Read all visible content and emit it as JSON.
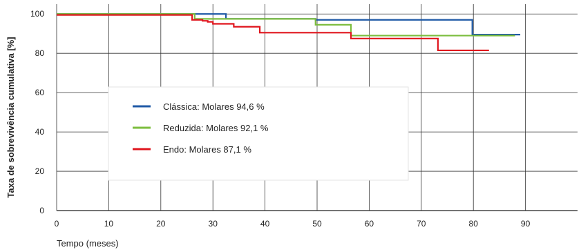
{
  "chart_data": {
    "type": "line",
    "xlabel": "Tempo (meses)",
    "ylabel": "Taxa de sobrevivência cumulativa [%]",
    "xlim": [
      0,
      100
    ],
    "ylim": [
      0,
      105
    ],
    "x_ticks": [
      0,
      10,
      20,
      30,
      40,
      50,
      60,
      70,
      80,
      90
    ],
    "y_ticks": [
      0,
      20,
      40,
      60,
      80,
      100
    ],
    "grid": true,
    "legend_position": "center-left",
    "series": [
      {
        "name": "Clássica: Molares 94,6 %",
        "color": "#1f5aa6",
        "step": true,
        "x": [
          0,
          32.5,
          49.7,
          79.8,
          89
        ],
        "y": [
          100,
          97.5,
          97,
          89.5,
          89.5
        ]
      },
      {
        "name": "Reduzida: Molares 92,1 %",
        "color": "#7cbd3e",
        "step": true,
        "x": [
          0,
          26.5,
          49.7,
          56.5,
          80,
          88
        ],
        "y": [
          100,
          97.5,
          94.5,
          89,
          89,
          89
        ]
      },
      {
        "name": "Endo: Molares 87,1 %",
        "color": "#e0161e",
        "step": true,
        "x": [
          0,
          26,
          28,
          29,
          30,
          34,
          39,
          56.5,
          73.2,
          83
        ],
        "y": [
          99.5,
          97,
          96.5,
          96,
          95,
          93.5,
          90.5,
          87.5,
          81.5,
          81.5
        ]
      }
    ]
  }
}
